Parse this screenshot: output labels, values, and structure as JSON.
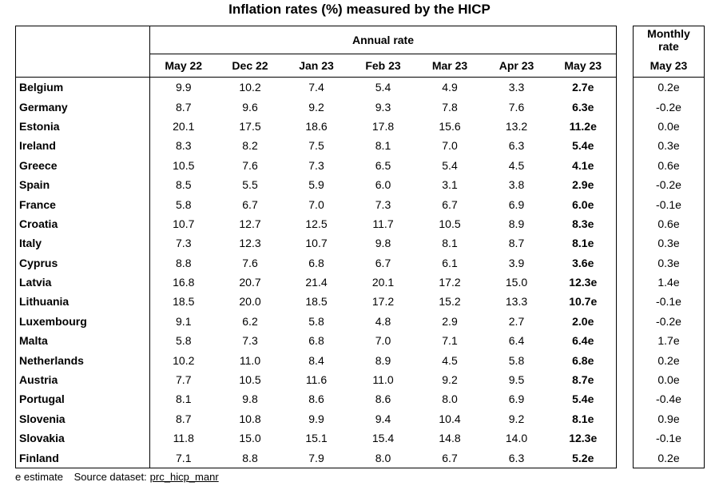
{
  "title": "Inflation rates (%) measured by the HICP",
  "annual_header": "Annual rate",
  "monthly_header_line1": "Monthly",
  "monthly_header_line2": "rate",
  "monthly_col": "May 23",
  "columns": [
    "May 22",
    "Dec 22",
    "Jan 23",
    "Feb 23",
    "Mar 23",
    "Apr 23",
    "May 23"
  ],
  "rows": [
    {
      "country": "Belgium",
      "values": [
        "9.9",
        "10.2",
        "7.4",
        "5.4",
        "4.9",
        "3.3",
        "2.7e"
      ],
      "monthly": "0.2e"
    },
    {
      "country": "Germany",
      "values": [
        "8.7",
        "9.6",
        "9.2",
        "9.3",
        "7.8",
        "7.6",
        "6.3e"
      ],
      "monthly": "-0.2e"
    },
    {
      "country": "Estonia",
      "values": [
        "20.1",
        "17.5",
        "18.6",
        "17.8",
        "15.6",
        "13.2",
        "11.2e"
      ],
      "monthly": "0.0e"
    },
    {
      "country": "Ireland",
      "values": [
        "8.3",
        "8.2",
        "7.5",
        "8.1",
        "7.0",
        "6.3",
        "5.4e"
      ],
      "monthly": "0.3e"
    },
    {
      "country": "Greece",
      "values": [
        "10.5",
        "7.6",
        "7.3",
        "6.5",
        "5.4",
        "4.5",
        "4.1e"
      ],
      "monthly": "0.6e"
    },
    {
      "country": "Spain",
      "values": [
        "8.5",
        "5.5",
        "5.9",
        "6.0",
        "3.1",
        "3.8",
        "2.9e"
      ],
      "monthly": "-0.2e"
    },
    {
      "country": "France",
      "values": [
        "5.8",
        "6.7",
        "7.0",
        "7.3",
        "6.7",
        "6.9",
        "6.0e"
      ],
      "monthly": "-0.1e"
    },
    {
      "country": "Croatia",
      "values": [
        "10.7",
        "12.7",
        "12.5",
        "11.7",
        "10.5",
        "8.9",
        "8.3e"
      ],
      "monthly": "0.6e"
    },
    {
      "country": "Italy",
      "values": [
        "7.3",
        "12.3",
        "10.7",
        "9.8",
        "8.1",
        "8.7",
        "8.1e"
      ],
      "monthly": "0.3e"
    },
    {
      "country": "Cyprus",
      "values": [
        "8.8",
        "7.6",
        "6.8",
        "6.7",
        "6.1",
        "3.9",
        "3.6e"
      ],
      "monthly": "0.3e"
    },
    {
      "country": "Latvia",
      "values": [
        "16.8",
        "20.7",
        "21.4",
        "20.1",
        "17.2",
        "15.0",
        "12.3e"
      ],
      "monthly": "1.4e"
    },
    {
      "country": "Lithuania",
      "values": [
        "18.5",
        "20.0",
        "18.5",
        "17.2",
        "15.2",
        "13.3",
        "10.7e"
      ],
      "monthly": "-0.1e"
    },
    {
      "country": "Luxembourg",
      "values": [
        "9.1",
        "6.2",
        "5.8",
        "4.8",
        "2.9",
        "2.7",
        "2.0e"
      ],
      "monthly": "-0.2e"
    },
    {
      "country": "Malta",
      "values": [
        "5.8",
        "7.3",
        "6.8",
        "7.0",
        "7.1",
        "6.4",
        "6.4e"
      ],
      "monthly": "1.7e"
    },
    {
      "country": "Netherlands",
      "values": [
        "10.2",
        "11.0",
        "8.4",
        "8.9",
        "4.5",
        "5.8",
        "6.8e"
      ],
      "monthly": "0.2e"
    },
    {
      "country": "Austria",
      "values": [
        "7.7",
        "10.5",
        "11.6",
        "11.0",
        "9.2",
        "9.5",
        "8.7e"
      ],
      "monthly": "0.0e"
    },
    {
      "country": "Portugal",
      "values": [
        "8.1",
        "9.8",
        "8.6",
        "8.6",
        "8.0",
        "6.9",
        "5.4e"
      ],
      "monthly": "-0.4e"
    },
    {
      "country": "Slovenia",
      "values": [
        "8.7",
        "10.8",
        "9.9",
        "9.4",
        "10.4",
        "9.2",
        "8.1e"
      ],
      "monthly": "0.9e"
    },
    {
      "country": "Slovakia",
      "values": [
        "11.8",
        "15.0",
        "15.1",
        "15.4",
        "14.8",
        "14.0",
        "12.3e"
      ],
      "monthly": "-0.1e"
    },
    {
      "country": "Finland",
      "values": [
        "7.1",
        "8.8",
        "7.9",
        "8.0",
        "6.7",
        "6.3",
        "5.2e"
      ],
      "monthly": "0.2e"
    }
  ],
  "footer": {
    "estimate_note": "e estimate",
    "source_label": "Source dataset:",
    "source_link": "prc_hicp_manr"
  }
}
